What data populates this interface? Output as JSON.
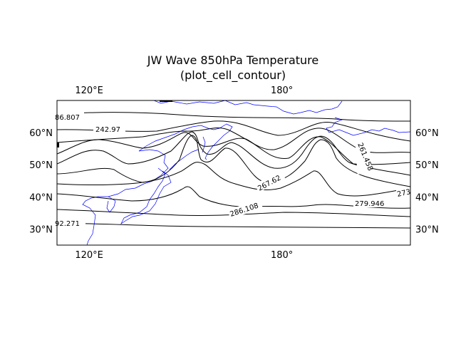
{
  "figure": {
    "title_line1": "JW Wave 850hPa Temperature",
    "title_line2": "(plot_cell_contour)"
  },
  "map": {
    "projection": "PlateCarree",
    "lon_range": [
      110,
      220
    ],
    "lat_range": [
      25,
      70
    ],
    "x_ticks": [
      {
        "lon": 120,
        "label": "120°E"
      },
      {
        "lon": 180,
        "label": "180°"
      }
    ],
    "y_ticks": [
      {
        "lat": 30,
        "label": "30°N"
      },
      {
        "lat": 40,
        "label": "40°N"
      },
      {
        "lat": 50,
        "label": "50°N"
      },
      {
        "lat": 60,
        "label": "60°N"
      }
    ],
    "coastline_color": "#0000ff",
    "contour_color": "#000000",
    "contour_labels": [
      "86.807",
      "242.97",
      "261.458",
      "267.62",
      "273",
      "279.946",
      "286.108",
      "92.271"
    ]
  }
}
